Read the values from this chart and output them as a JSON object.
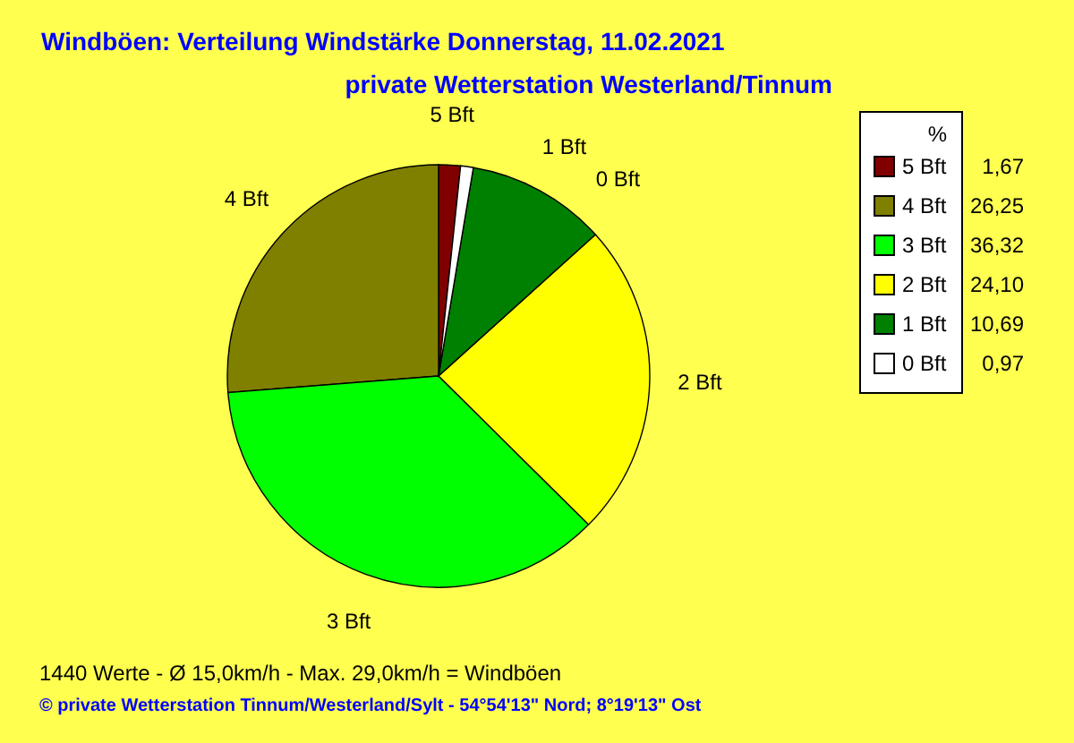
{
  "chart_data": {
    "type": "pie",
    "title": "Windböen: Verteilung Windstärke  Donnerstag, 11.02.2021",
    "subtitle": "private Wetterstation Westerland/Tinnum",
    "legend_title": "%",
    "legend": "top right",
    "categories": [
      "5 Bft",
      "4 Bft",
      "3 Bft",
      "2 Bft",
      "1 Bft",
      "0 Bft"
    ],
    "values": [
      1.67,
      26.25,
      36.32,
      24.1,
      10.69,
      0.97
    ],
    "value_labels": [
      "1,67",
      "26,25",
      "36,32",
      "24,10",
      "10,69",
      "0,97"
    ],
    "colors": [
      "#800000",
      "#808000",
      "#00ff00",
      "#ffff00",
      "#008000",
      "#ffffff"
    ],
    "annotations": [
      "1440 Werte   -   Ø 15,0km/h  -  Max. 29,0km/h = Windböen",
      "© private Wetterstation Tinnum/Westerland/Sylt  -  54°54'13\" Nord; 8°19'13\" Ost"
    ]
  }
}
